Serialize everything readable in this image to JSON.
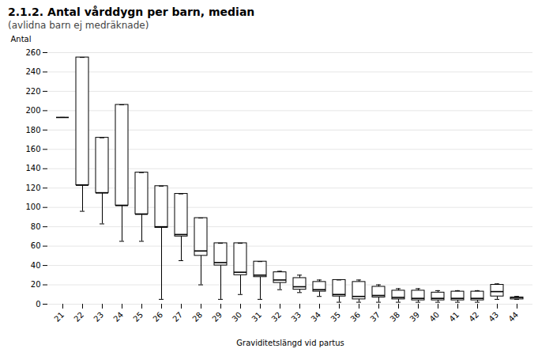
{
  "chart_data": {
    "type": "box",
    "title": "2.1.2. Antal vårddygn per barn, median",
    "subtitle": "(avlidna barn ej medräknade)",
    "xlabel": "Graviditetslängd vid partus",
    "ylabel": "Antal",
    "categories": [
      "21",
      "22",
      "23",
      "24",
      "25",
      "26",
      "27",
      "28",
      "29",
      "30",
      "31",
      "32",
      "33",
      "34",
      "35",
      "36",
      "37",
      "38",
      "39",
      "40",
      "41",
      "42",
      "43",
      "44"
    ],
    "p5": [
      193,
      96,
      83,
      65,
      65,
      5,
      45,
      20,
      5,
      10,
      5,
      15,
      12,
      8,
      2,
      2,
      2,
      2,
      2,
      2,
      2,
      2,
      5,
      5
    ],
    "q1": [
      193,
      123,
      115,
      102,
      93,
      79,
      70,
      50,
      40,
      30,
      28,
      22,
      15,
      13,
      8,
      5,
      7,
      5,
      4,
      4,
      4,
      4,
      8,
      5
    ],
    "median": [
      193,
      123,
      115,
      102,
      93,
      80,
      72,
      55,
      43,
      33,
      30,
      25,
      18,
      15,
      10,
      8,
      9,
      7,
      6,
      6,
      6,
      6,
      13,
      7
    ],
    "q3": [
      193,
      255,
      172,
      206,
      136,
      122,
      114,
      89,
      63,
      63,
      44,
      33,
      27,
      23,
      25,
      23,
      18,
      14,
      14,
      12,
      13,
      13,
      20,
      7
    ],
    "p95": [
      193,
      255,
      172,
      206,
      136,
      122,
      114,
      89,
      63,
      63,
      44,
      34,
      30,
      25,
      25,
      25,
      20,
      16,
      16,
      14,
      14,
      14,
      21,
      8
    ],
    "ylim": [
      0,
      260
    ],
    "yticks": [
      0,
      20,
      40,
      60,
      80,
      100,
      120,
      140,
      160,
      180,
      200,
      220,
      240,
      260
    ],
    "grid": true
  }
}
